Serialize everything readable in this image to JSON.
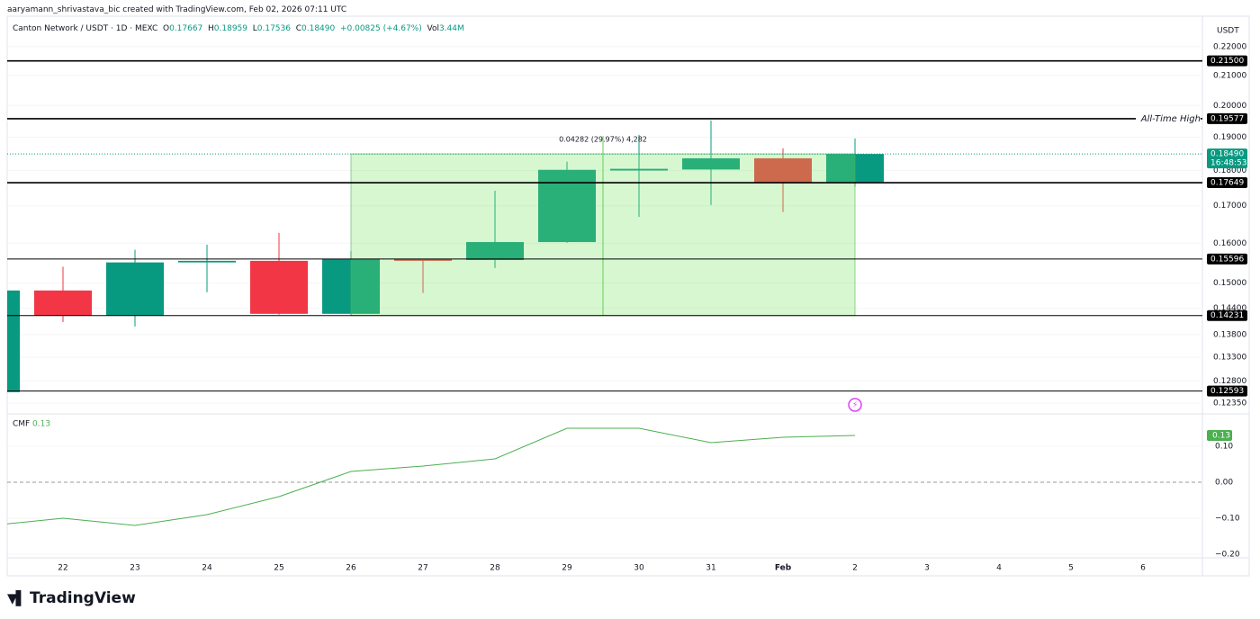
{
  "header": {
    "credit": "aaryamann_shrivastava_bic created with TradingView.com, Feb 02, 2026 07:11 UTC",
    "symbol": "Canton Network / USDT · 1D · MEXC",
    "ohlc": [
      [
        "O",
        "0.17667"
      ],
      [
        "H",
        "0.18959"
      ],
      [
        "L",
        "0.17536"
      ],
      [
        "C",
        "0.18490"
      ]
    ],
    "change": "+0.00825 (+4.67%)",
    "volume_label": "Vol",
    "volume": "3.44M"
  },
  "footer": {
    "brand": "TradingView"
  },
  "chart_data": [
    {
      "type": "candlestick",
      "currency": "USDT",
      "log_scale": true,
      "grid": true,
      "categories": [
        null,
        "22",
        "23",
        "24",
        "25",
        "26",
        "27",
        "28",
        "29",
        "30",
        "31",
        "Feb",
        "2",
        "3",
        "4",
        "5",
        "6"
      ],
      "open": [
        0.1257,
        0.1482,
        0.1423,
        0.1551,
        0.1555,
        0.1427,
        0.156,
        0.1557,
        0.1603,
        0.18,
        0.1803,
        0.1836,
        0.17667,
        null,
        null,
        null,
        null
      ],
      "high": [
        0.1482,
        0.154,
        0.1583,
        0.1596,
        0.1627,
        0.158,
        0.156,
        0.1742,
        0.1826,
        0.1907,
        0.1952,
        0.1866,
        0.18959,
        null,
        null,
        null,
        null
      ],
      "low": [
        0.1257,
        0.1408,
        0.1398,
        0.1478,
        0.1425,
        0.1423,
        0.1476,
        0.1537,
        0.1601,
        0.167,
        0.1702,
        0.1683,
        0.17536,
        null,
        null,
        null,
        null
      ],
      "close": [
        0.1482,
        0.1423,
        0.1551,
        0.1555,
        0.1427,
        0.156,
        0.1555,
        0.1603,
        0.1802,
        0.1805,
        0.1836,
        0.1765,
        0.1849,
        null,
        null,
        null,
        null
      ],
      "up_color": "#089981",
      "down_color": "#f23645",
      "ylim": [
        0.1217,
        0.2298
      ],
      "yticks": [
        {
          "value": 0.22,
          "label": "0.22000"
        },
        {
          "value": 0.21,
          "label": "0.21000"
        },
        {
          "value": 0.2,
          "label": "0.20000"
        },
        {
          "value": 0.19,
          "label": "0.19000"
        },
        {
          "value": 0.18,
          "label": "0.18000"
        },
        {
          "value": 0.17,
          "label": "0.17000"
        },
        {
          "value": 0.16,
          "label": "0.16000"
        },
        {
          "value": 0.15,
          "label": "0.15000"
        },
        {
          "value": 0.144,
          "label": "0.14400"
        },
        {
          "value": 0.138,
          "label": "0.13800"
        },
        {
          "value": 0.133,
          "label": "0.13300"
        },
        {
          "value": 0.128,
          "label": "0.12800"
        },
        {
          "value": 0.1235,
          "label": "0.12350"
        }
      ],
      "levels": [
        {
          "value": 0.215,
          "label": "0.21500"
        },
        {
          "value": 0.19577,
          "label": "0.19577",
          "note": "All-Time High"
        },
        {
          "value": 0.17649,
          "label": "0.17649"
        },
        {
          "value": 0.15596,
          "label": "0.15596"
        },
        {
          "value": 0.14231,
          "label": "0.14231"
        },
        {
          "value": 0.12593,
          "label": "0.12593"
        }
      ],
      "last_price": {
        "value": 0.1849,
        "label": "0.18490",
        "countdown": "16:48:53",
        "color": "#089981"
      },
      "measure_label": "0.04282 (29.97%) 4,282"
    },
    {
      "type": "line",
      "title": "CMF",
      "series": [
        {
          "name": "CMF",
          "color": "#4caf50",
          "values": [
            -0.12,
            -0.1,
            -0.12,
            -0.09,
            -0.04,
            0.03,
            0.045,
            0.065,
            0.15,
            0.15,
            0.11,
            0.125,
            0.13,
            null,
            null,
            null,
            null
          ]
        }
      ],
      "ylim": [
        -0.21,
        0.185
      ],
      "yticks": [
        {
          "value": 0.1,
          "label": "0.10"
        },
        {
          "value": 0,
          "label": "0.00"
        },
        {
          "value": -0.1,
          "label": "−0.10"
        },
        {
          "value": -0.2,
          "label": "−0.20"
        }
      ]
    }
  ]
}
